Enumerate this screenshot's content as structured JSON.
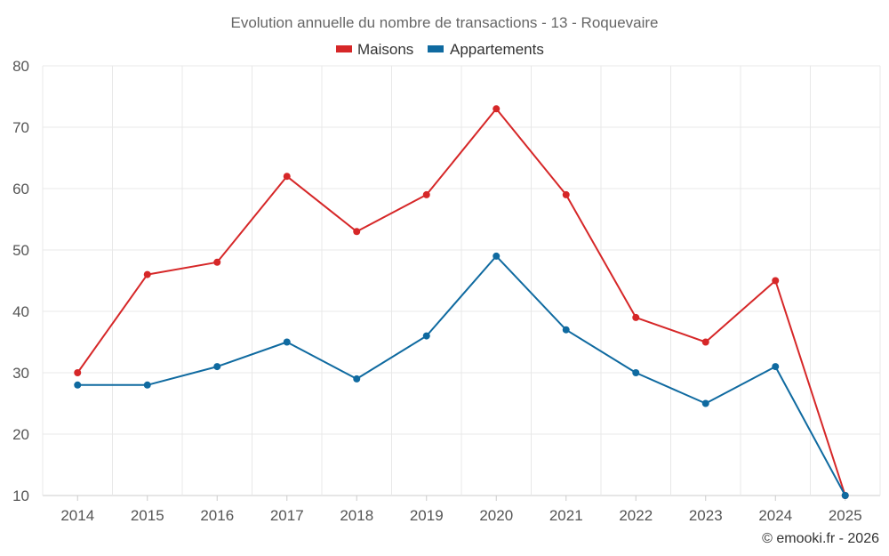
{
  "chart_data": {
    "type": "line",
    "title": "Evolution annuelle du nombre de transactions - 13 - Roquevaire",
    "categories": [
      "2014",
      "2015",
      "2016",
      "2017",
      "2018",
      "2019",
      "2020",
      "2021",
      "2022",
      "2023",
      "2024",
      "2025"
    ],
    "series": [
      {
        "name": "Maisons",
        "color": "#d62728",
        "values": [
          30,
          46,
          48,
          62,
          53,
          59,
          73,
          59,
          39,
          35,
          45,
          10
        ]
      },
      {
        "name": "Appartements",
        "color": "#0f6aa0",
        "values": [
          28,
          28,
          31,
          35,
          29,
          36,
          49,
          37,
          30,
          25,
          31,
          10
        ]
      }
    ],
    "ylim": [
      10,
      80
    ],
    "yticks": [
      10,
      20,
      30,
      40,
      50,
      60,
      70,
      80
    ],
    "xlabel": "",
    "ylabel": "",
    "grid": true,
    "legend_position": "top-center"
  },
  "credit": "© emooki.fr - 2026"
}
